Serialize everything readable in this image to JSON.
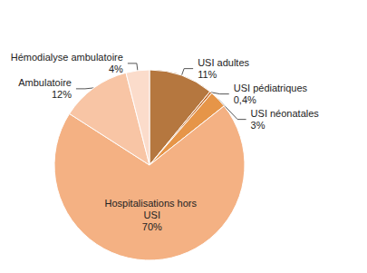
{
  "chart_data": {
    "type": "pie",
    "categories": [
      "USI adultes",
      "USI pédiatriques",
      "USI néonatales",
      "Hospitalisations hors USI",
      "Ambulatoire",
      "Hémodialyse ambulatoire"
    ],
    "values": [
      11,
      0.4,
      3,
      70,
      12,
      4
    ],
    "value_labels": [
      "11%",
      "0,4%",
      "3%",
      "70%",
      "12%",
      "4%"
    ],
    "colors": [
      "#b5773f",
      "#c8702f",
      "#e69548",
      "#f4b183",
      "#f8c5a5",
      "#fbdccb"
    ],
    "data_labels": true
  }
}
